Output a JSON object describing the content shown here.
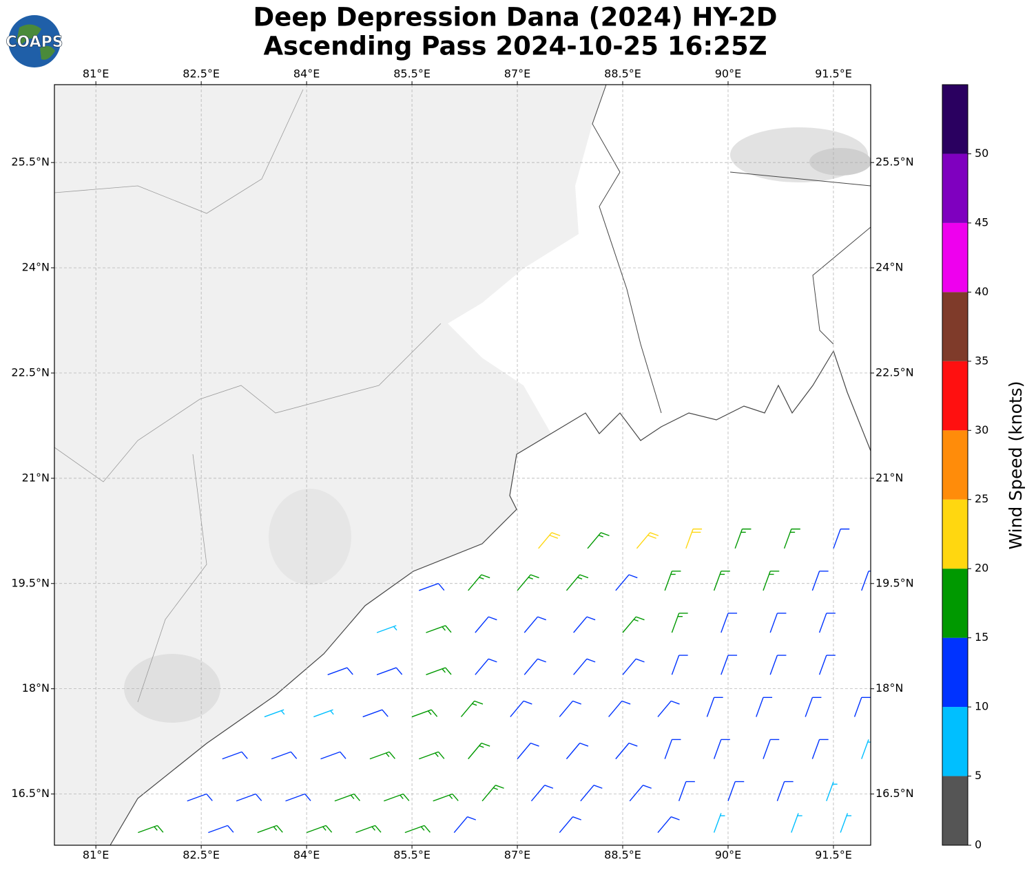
{
  "logo": "COAPS",
  "title": [
    "Deep Depression Dana (2024) HY-2D",
    "Ascending Pass 2024-10-25 16:25Z"
  ],
  "map": {
    "xlim": [
      80.41,
      92.03
    ],
    "ylim": [
      15.77,
      26.61
    ],
    "grid": true,
    "xticks": [
      {
        "value": 81,
        "label": "81°E"
      },
      {
        "value": 82.5,
        "label": "82.5°E"
      },
      {
        "value": 84,
        "label": "84°E"
      },
      {
        "value": 85.5,
        "label": "85.5°E"
      },
      {
        "value": 87,
        "label": "87°E"
      },
      {
        "value": 88.5,
        "label": "88.5°E"
      },
      {
        "value": 90,
        "label": "90°E"
      },
      {
        "value": 91.5,
        "label": "91.5°E"
      }
    ],
    "yticks": [
      {
        "value": 16.5,
        "label": "16.5°N"
      },
      {
        "value": 18,
        "label": "18°N"
      },
      {
        "value": 19.5,
        "label": "19.5°N"
      },
      {
        "value": 21,
        "label": "21°N"
      },
      {
        "value": 22.5,
        "label": "22.5°N"
      },
      {
        "value": 24,
        "label": "24°N"
      },
      {
        "value": 25.5,
        "label": "25.5°N"
      }
    ],
    "barbs": [
      [
        87.3,
        20.0,
        21,
        40
      ],
      [
        88.0,
        20.0,
        17,
        40
      ],
      [
        88.7,
        20.0,
        21,
        40
      ],
      [
        89.4,
        20.0,
        22,
        20
      ],
      [
        90.1,
        20.0,
        17,
        20
      ],
      [
        90.8,
        20.0,
        16,
        20
      ],
      [
        91.5,
        20.0,
        13,
        20
      ],
      [
        85.6,
        19.4,
        12,
        70
      ],
      [
        86.3,
        19.4,
        16,
        40
      ],
      [
        87.0,
        19.4,
        17,
        40
      ],
      [
        87.7,
        19.4,
        18,
        40
      ],
      [
        88.4,
        19.4,
        14,
        40
      ],
      [
        89.1,
        19.4,
        16,
        20
      ],
      [
        89.8,
        19.4,
        16,
        20
      ],
      [
        90.5,
        19.4,
        15,
        20
      ],
      [
        91.2,
        19.4,
        13,
        20
      ],
      [
        91.9,
        19.4,
        12,
        20
      ],
      [
        85.0,
        18.8,
        9,
        70
      ],
      [
        85.7,
        18.8,
        16,
        70
      ],
      [
        86.4,
        18.8,
        13,
        40
      ],
      [
        87.1,
        18.8,
        14,
        40
      ],
      [
        87.8,
        18.8,
        14,
        40
      ],
      [
        88.5,
        18.8,
        16,
        40
      ],
      [
        89.2,
        18.8,
        15,
        20
      ],
      [
        89.9,
        18.8,
        14,
        20
      ],
      [
        90.6,
        18.8,
        13,
        20
      ],
      [
        91.3,
        18.8,
        12,
        20
      ],
      [
        84.3,
        18.2,
        11,
        70
      ],
      [
        85.0,
        18.2,
        12,
        70
      ],
      [
        85.7,
        18.2,
        17,
        70
      ],
      [
        86.4,
        18.2,
        14,
        40
      ],
      [
        87.1,
        18.2,
        14,
        40
      ],
      [
        87.8,
        18.2,
        13,
        40
      ],
      [
        88.5,
        18.2,
        13,
        40
      ],
      [
        89.2,
        18.2,
        13,
        20
      ],
      [
        89.9,
        18.2,
        12,
        20
      ],
      [
        90.6,
        18.2,
        12,
        20
      ],
      [
        91.3,
        18.2,
        12,
        20
      ],
      [
        83.4,
        17.6,
        8,
        70
      ],
      [
        84.1,
        17.6,
        9,
        70
      ],
      [
        84.8,
        17.6,
        12,
        70
      ],
      [
        85.5,
        17.6,
        16,
        70
      ],
      [
        86.2,
        17.6,
        16,
        40
      ],
      [
        86.9,
        17.6,
        14,
        40
      ],
      [
        87.6,
        17.6,
        13,
        40
      ],
      [
        88.3,
        17.6,
        13,
        40
      ],
      [
        89.0,
        17.6,
        12,
        40
      ],
      [
        89.7,
        17.6,
        12,
        20
      ],
      [
        90.4,
        17.6,
        12,
        20
      ],
      [
        91.1,
        17.6,
        12,
        20
      ],
      [
        91.8,
        17.6,
        11,
        20
      ],
      [
        82.8,
        17.0,
        12,
        70
      ],
      [
        83.5,
        17.0,
        13,
        70
      ],
      [
        84.2,
        17.0,
        13,
        70
      ],
      [
        84.9,
        17.0,
        15,
        70
      ],
      [
        85.6,
        17.0,
        16,
        70
      ],
      [
        86.3,
        17.0,
        17,
        40
      ],
      [
        87.0,
        17.0,
        14,
        40
      ],
      [
        87.7,
        17.0,
        13,
        40
      ],
      [
        88.4,
        17.0,
        13,
        40
      ],
      [
        89.1,
        17.0,
        12,
        20
      ],
      [
        89.8,
        17.0,
        12,
        20
      ],
      [
        90.5,
        17.0,
        12,
        20
      ],
      [
        91.2,
        17.0,
        11,
        20
      ],
      [
        91.9,
        17.0,
        9,
        20
      ],
      [
        82.3,
        16.4,
        12,
        70
      ],
      [
        83.0,
        16.4,
        13,
        70
      ],
      [
        83.7,
        16.4,
        14,
        70
      ],
      [
        84.4,
        16.4,
        15,
        70
      ],
      [
        85.1,
        16.4,
        16,
        70
      ],
      [
        85.8,
        16.4,
        17,
        70
      ],
      [
        86.5,
        16.4,
        16,
        40
      ],
      [
        87.2,
        16.4,
        14,
        40
      ],
      [
        87.9,
        16.4,
        13,
        40
      ],
      [
        88.6,
        16.4,
        12,
        40
      ],
      [
        89.3,
        16.4,
        12,
        20
      ],
      [
        90.0,
        16.4,
        11,
        20
      ],
      [
        90.7,
        16.4,
        11,
        20
      ],
      [
        91.4,
        16.4,
        9,
        20
      ],
      [
        81.6,
        15.95,
        15,
        70
      ],
      [
        82.6,
        15.95,
        13,
        70
      ],
      [
        83.3,
        15.95,
        16,
        70
      ],
      [
        84.0,
        15.95,
        16,
        70
      ],
      [
        84.7,
        15.95,
        17,
        70
      ],
      [
        85.4,
        15.95,
        16,
        70
      ],
      [
        86.1,
        15.95,
        14,
        40
      ],
      [
        87.6,
        15.95,
        13,
        40
      ],
      [
        89.0,
        15.95,
        11,
        40
      ],
      [
        89.8,
        15.95,
        8,
        20
      ],
      [
        90.9,
        15.95,
        9,
        20
      ],
      [
        91.6,
        15.95,
        8,
        20
      ]
    ]
  },
  "colorbar": {
    "label": "Wind Speed (knots)",
    "levels": [
      0,
      5,
      10,
      15,
      20,
      25,
      30,
      35,
      40,
      45,
      50,
      55
    ],
    "colors": [
      "#555555",
      "#00bfff",
      "#0033ff",
      "#009900",
      "#ffd710",
      "#ff8c0a",
      "#ff1010",
      "#7f3b2a",
      "#ee00ee",
      "#7f00bf",
      "#2a0060"
    ],
    "ticks": [
      0,
      5,
      10,
      15,
      20,
      25,
      30,
      35,
      40,
      45,
      50
    ]
  }
}
